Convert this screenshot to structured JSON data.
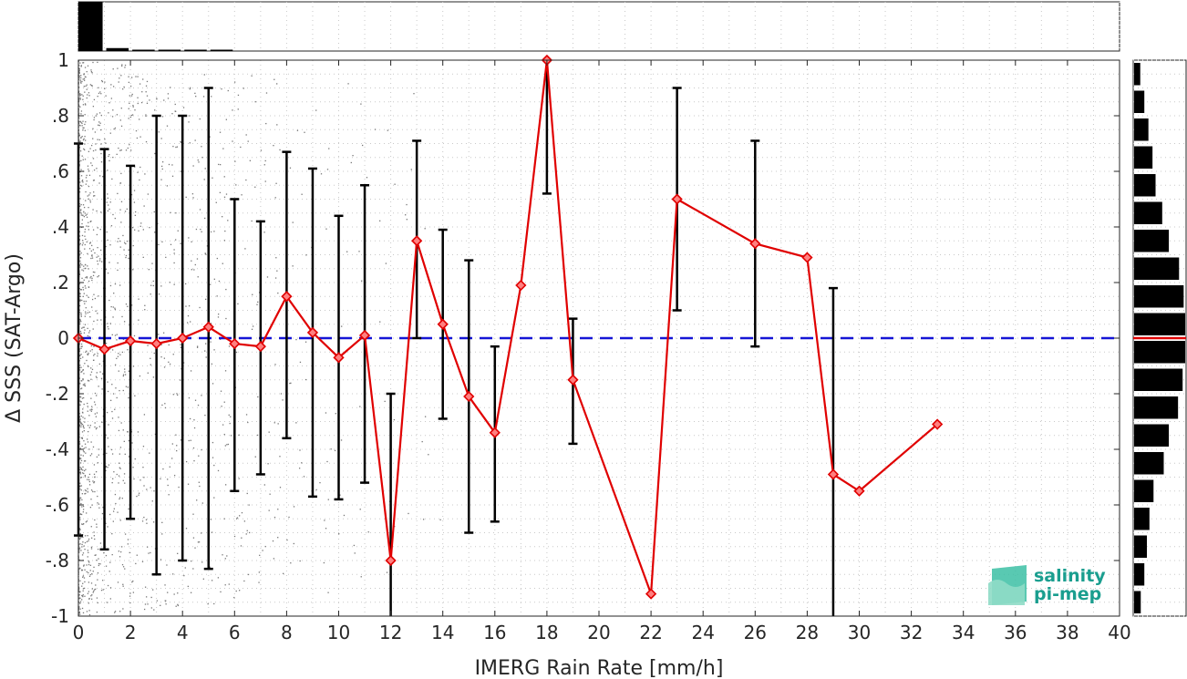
{
  "chart_data": {
    "type": "scatter",
    "xlabel": "IMERG Rain Rate [mm/h]",
    "ylabel": "Δ SSS (SAT-Argo)",
    "xlim": [
      0,
      40
    ],
    "ylim": [
      -1,
      1
    ],
    "xticks": [
      0,
      2,
      4,
      6,
      8,
      10,
      12,
      14,
      16,
      18,
      20,
      22,
      24,
      26,
      28,
      30,
      32,
      34,
      36,
      38,
      40
    ],
    "yticks": [
      -1,
      -0.8,
      -0.6,
      -0.4,
      -0.2,
      0,
      0.2,
      0.4,
      0.6,
      0.8,
      1
    ],
    "grid": true,
    "reference_line": {
      "y": 0,
      "style": "dashed",
      "color": "#1515d6"
    },
    "series": [
      {
        "color": "#e00000",
        "marker": "diamond",
        "x": [
          0,
          1,
          2,
          3,
          4,
          5,
          6,
          7,
          8,
          9,
          10,
          11,
          12,
          13,
          14,
          15,
          16,
          17,
          18,
          19,
          22,
          23,
          26,
          28,
          29,
          30,
          33
        ],
        "y": [
          0.0,
          -0.04,
          -0.01,
          -0.02,
          0.0,
          0.04,
          -0.02,
          -0.03,
          0.15,
          0.02,
          -0.07,
          0.01,
          -0.8,
          0.35,
          0.05,
          -0.21,
          -0.34,
          0.19,
          1.0,
          -0.15,
          -0.92,
          0.5,
          0.34,
          0.29,
          -0.49,
          -0.55,
          -0.31
        ]
      }
    ],
    "error_bars": {
      "color": "#000000",
      "x": [
        0,
        1,
        2,
        3,
        4,
        5,
        6,
        7,
        8,
        9,
        10,
        11,
        12,
        13,
        14,
        15,
        16,
        18,
        19,
        23,
        26,
        29
      ],
      "lower": [
        -0.71,
        -0.76,
        -0.65,
        -0.85,
        -0.8,
        -0.83,
        -0.55,
        -0.49,
        -0.36,
        -0.57,
        -0.58,
        -0.52,
        -1.0,
        0.0,
        -0.29,
        -0.7,
        -0.66,
        0.52,
        -0.38,
        0.1,
        -0.03,
        -1.0
      ],
      "upper": [
        0.7,
        0.68,
        0.62,
        0.8,
        0.8,
        0.9,
        0.5,
        0.42,
        0.67,
        0.61,
        0.44,
        0.55,
        -0.2,
        0.71,
        0.39,
        0.28,
        -0.03,
        1.0,
        0.07,
        0.9,
        0.71,
        0.18
      ]
    },
    "scatter_cloud": {
      "color": "#777777",
      "description": "dense raw samples concentrated at low rain rates"
    },
    "top_histogram": {
      "bin_width": 1,
      "relative_counts": [
        1.0,
        0.06,
        0.025,
        0.015,
        0.01,
        0.008
      ]
    },
    "right_histogram": {
      "bin_width": 0.1,
      "bin_centers": [
        -0.95,
        -0.85,
        -0.75,
        -0.65,
        -0.55,
        -0.45,
        -0.35,
        -0.25,
        -0.15,
        -0.05,
        0.05,
        0.15,
        0.25,
        0.35,
        0.45,
        0.55,
        0.65,
        0.75,
        0.85,
        0.95
      ],
      "relative_counts": [
        0.13,
        0.2,
        0.25,
        0.3,
        0.38,
        0.58,
        0.68,
        0.86,
        0.95,
        1.0,
        1.0,
        0.97,
        0.88,
        0.68,
        0.55,
        0.42,
        0.36,
        0.28,
        0.2,
        0.12
      ],
      "median_marker_color": "#e00000"
    }
  },
  "logo": {
    "line1": "salinity",
    "line2": "pi-mep",
    "colors": {
      "text": "#1a9e8f",
      "shape": "#3cbfa5"
    }
  }
}
